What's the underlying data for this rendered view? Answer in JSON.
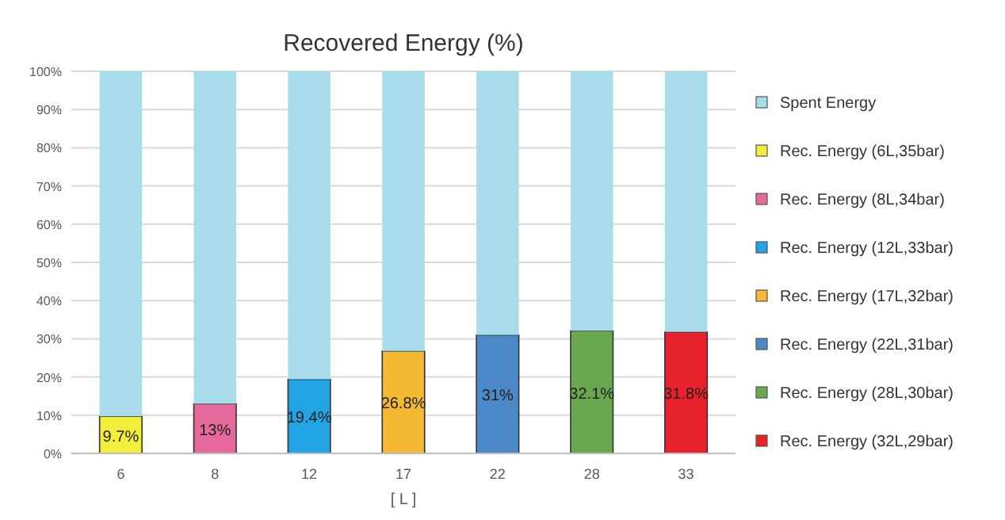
{
  "chart_data": {
    "type": "bar",
    "title": "Recovered Energy (%)",
    "xlabel": "[ L ]",
    "categories": [
      "6",
      "8",
      "12",
      "17",
      "22",
      "28",
      "33"
    ],
    "stacked": true,
    "grid": "y",
    "legend": "right",
    "ylim": [
      0,
      100
    ],
    "yticks": [
      {
        "value": 0,
        "label": "0%"
      },
      {
        "value": 10,
        "label": "10%"
      },
      {
        "value": 20,
        "label": "20%"
      },
      {
        "value": 30,
        "label": "30%"
      },
      {
        "value": 40,
        "label": "40%"
      },
      {
        "value": 50,
        "label": "50%"
      },
      {
        "value": 60,
        "label": "60%"
      },
      {
        "value": 70,
        "label": "70%"
      },
      {
        "value": 80,
        "label": "80%"
      },
      {
        "value": 90,
        "label": "90%"
      },
      {
        "value": 100,
        "label": "100%"
      }
    ],
    "series": [
      {
        "name": "Rec. Energy (6L,35bar)",
        "color": "#f2ee3a",
        "values": [
          9.7,
          null,
          null,
          null,
          null,
          null,
          null
        ],
        "value_labels": [
          "9.7%",
          null,
          null,
          null,
          null,
          null,
          null
        ]
      },
      {
        "name": "Rec. Energy (8L,34bar)",
        "color": "#e5699b",
        "values": [
          null,
          13,
          null,
          null,
          null,
          null,
          null
        ],
        "value_labels": [
          null,
          "13%",
          null,
          null,
          null,
          null,
          null
        ]
      },
      {
        "name": "Rec. Energy (12L,33bar)",
        "color": "#22a3e3",
        "values": [
          null,
          null,
          19.4,
          null,
          null,
          null,
          null
        ],
        "value_labels": [
          null,
          null,
          "19.4%",
          null,
          null,
          null,
          null
        ]
      },
      {
        "name": "Rec. Energy (17L,32bar)",
        "color": "#f4b933",
        "values": [
          null,
          null,
          null,
          26.8,
          null,
          null,
          null
        ],
        "value_labels": [
          null,
          null,
          null,
          "26.8%",
          null,
          null,
          null
        ]
      },
      {
        "name": "Rec. Energy (22L,31bar)",
        "color": "#4d88c9",
        "values": [
          null,
          null,
          null,
          null,
          31,
          null,
          null
        ],
        "value_labels": [
          null,
          null,
          null,
          null,
          "31%",
          null,
          null
        ]
      },
      {
        "name": "Rec. Energy (28L,30bar)",
        "color": "#6aa84f",
        "values": [
          null,
          null,
          null,
          null,
          null,
          32.1,
          null
        ],
        "value_labels": [
          null,
          null,
          null,
          null,
          null,
          "32.1%",
          null
        ]
      },
      {
        "name": "Rec. Energy (32L,29bar)",
        "color": "#e8222b",
        "values": [
          null,
          null,
          null,
          null,
          null,
          null,
          31.8
        ],
        "value_labels": [
          null,
          null,
          null,
          null,
          null,
          null,
          "31.8%"
        ]
      },
      {
        "name": "Spent Energy",
        "color": "#a8dcea",
        "values": [
          90.3,
          87,
          80.6,
          73.2,
          69,
          67.9,
          68.2
        ]
      }
    ]
  }
}
